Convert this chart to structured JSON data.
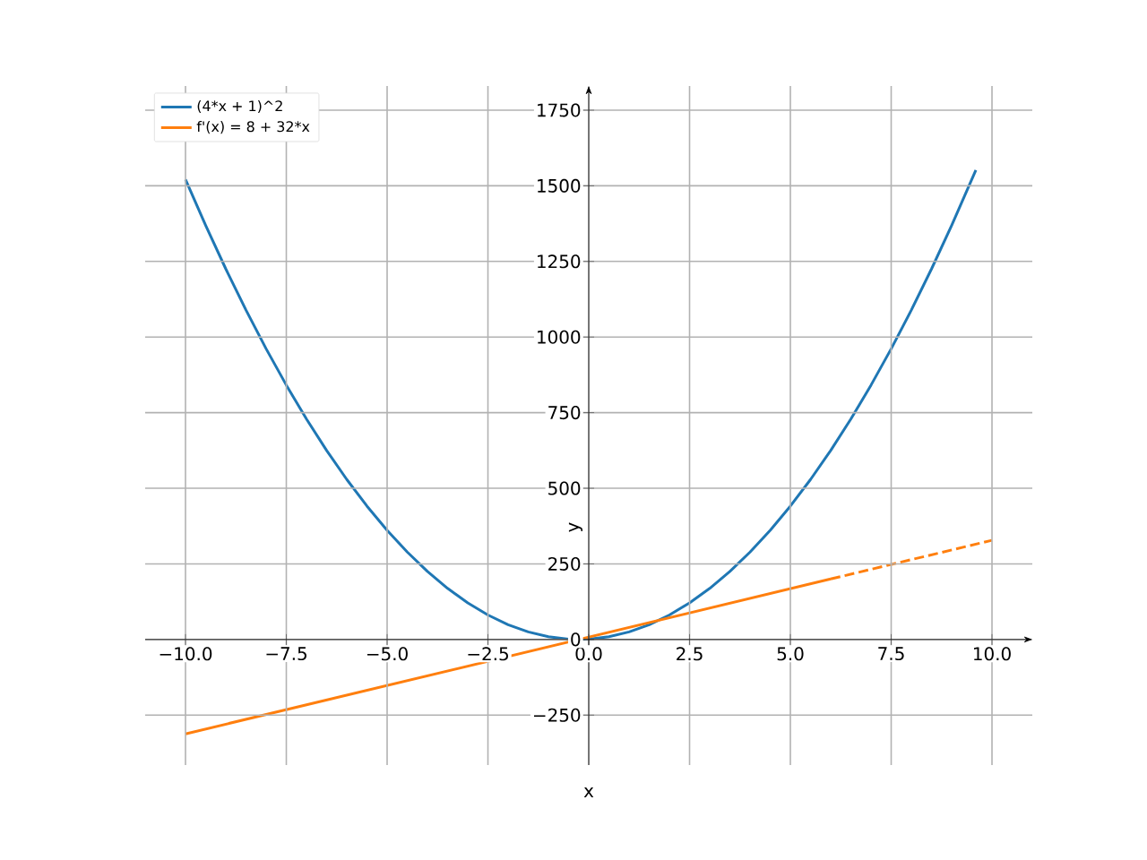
{
  "chart_data": {
    "type": "line",
    "xlabel": "x",
    "ylabel": "y",
    "series": [
      {
        "name": "(4*x + 1)^2",
        "color": "#1f77b4",
        "line_style": "solid",
        "x": [
          -10,
          -9.5,
          -9,
          -8.5,
          -8,
          -7.5,
          -7,
          -6.5,
          -6,
          -5.5,
          -5,
          -4.5,
          -4,
          -3.5,
          -3,
          -2.5,
          -2,
          -1.5,
          -1,
          -0.5,
          -0.25,
          0,
          0.5,
          1,
          1.5,
          2,
          2.5,
          3,
          3.5,
          4,
          4.5,
          5,
          5.5,
          6,
          6.5,
          7,
          7.5,
          8,
          8.5,
          9,
          9.6
        ],
        "values": [
          1521,
          1369,
          1225,
          1089,
          961,
          841,
          729,
          625,
          529,
          441,
          361,
          289,
          225,
          169,
          121,
          81,
          49,
          25,
          9,
          1,
          0,
          1,
          9,
          25,
          49,
          81,
          121,
          169,
          225,
          289,
          361,
          441,
          529,
          625,
          729,
          841,
          961,
          1089,
          1225,
          1369,
          1552
        ]
      },
      {
        "name": "f'(x) = 8 + 32*x",
        "color": "#ff7f0e",
        "line_style": "solid",
        "x": [
          -10,
          6
        ],
        "values": [
          -312,
          200
        ]
      },
      {
        "color": "#ff7f0e",
        "line_style": "dashed",
        "x": [
          6,
          10
        ],
        "values": [
          200,
          328
        ]
      }
    ],
    "xlim": [
      -11,
      11
    ],
    "ylim": [
      -415,
      1830
    ],
    "xticks": [
      {
        "value": -10,
        "label": "−10.0"
      },
      {
        "value": -7.5,
        "label": "−7.5"
      },
      {
        "value": -5,
        "label": "−5.0"
      },
      {
        "value": -2.5,
        "label": "−2.5"
      },
      {
        "value": 0,
        "label": "0.0"
      },
      {
        "value": 2.5,
        "label": "2.5"
      },
      {
        "value": 5,
        "label": "5.0"
      },
      {
        "value": 7.5,
        "label": "7.5"
      },
      {
        "value": 10,
        "label": "10.0"
      }
    ],
    "yticks": [
      {
        "value": -250,
        "label": "−250"
      },
      0,
      250,
      500,
      750,
      1000,
      1250,
      1500,
      1750
    ],
    "grid": true,
    "legend": "top left",
    "marker": "none"
  }
}
